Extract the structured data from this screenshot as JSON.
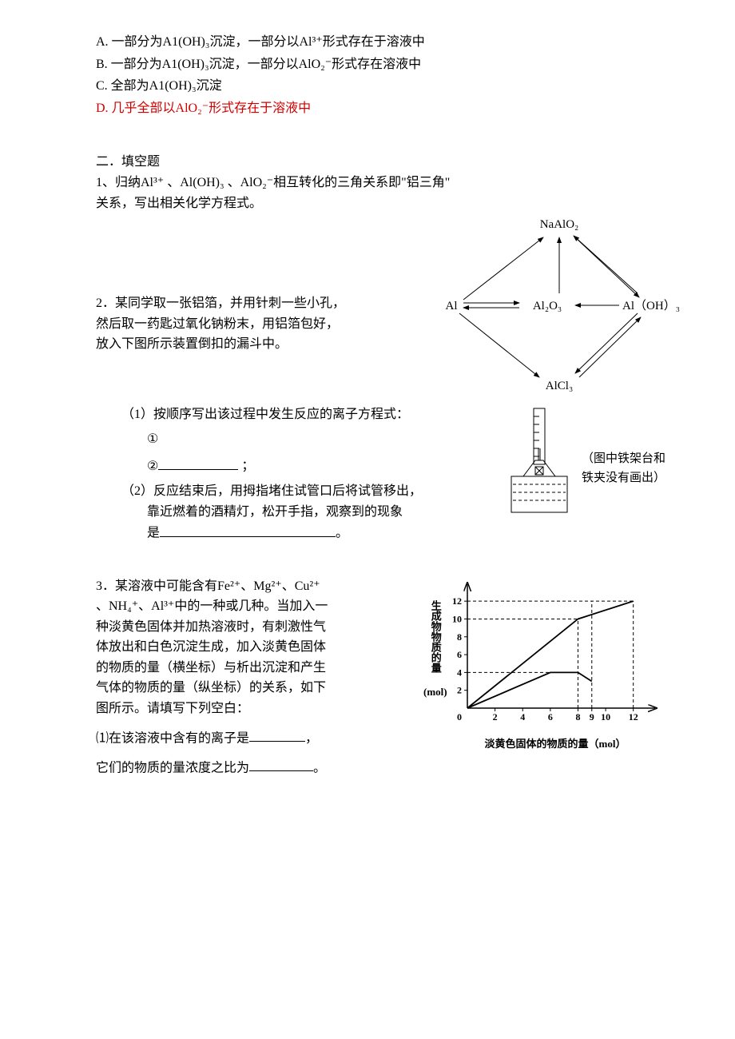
{
  "options": {
    "a": "A. 一部分为A1(OH)₃沉淀，一部分以Al³⁺形式存在于溶液中",
    "b": "B. 一部分为A1(OH)₃沉淀，一部分以AlO₂⁻形式存在溶液中",
    "c": "C. 全部为A1(OH)₃沉淀",
    "d": "D. 几乎全部以AlO₂⁻形式存在于溶液中"
  },
  "section2_title": "二．填空题",
  "q1": {
    "text_l1": "1、归纳Al³⁺ 、Al(OH)₃ 、AlO₂⁻相互转化的三角关系即\"铝三角\"",
    "text_l2": "关系，写出相关化学方程式。",
    "nodes": {
      "top": "NaAlO₂",
      "left": "Al",
      "mid": "Al₂O₃",
      "right": "Al（OH）₃",
      "bottom": "AlCl₃"
    }
  },
  "q2": {
    "l1": "2．某同学取一张铝箔，并用针刺一些小孔，",
    "l2": "然后取一药匙过氧化钠粉末，用铝箔包好，",
    "l3": "放入下图所示装置倒扣的漏斗中。",
    "p1": "（1）按顺序写出该过程中发生反应的离子方程式：",
    "c1": "①",
    "c2a": "②",
    "c2b": "；",
    "p2a": "（2）反应结束后，用拇指堵住试管口后将试管移出，",
    "p2b": "靠近燃着的酒精灯，松开手指，观察到的现象",
    "p2c": "是",
    "p2d": "。",
    "note1": "（图中铁架台和",
    "note2": "铁夹没有画出）"
  },
  "q3": {
    "l1": "3．某溶液中可能含有Fe²⁺、Mg²⁺、Cu²⁺",
    "l2": "、NH₄⁺、Al³⁺中的一种或几种。当加入一",
    "l3": "种淡黄色固体并加热溶液时，有刺激性气",
    "l4": "体放出和白色沉淀生成，加入淡黄色固体",
    "l5": "的物质的量（横坐标）与析出沉淀和产生",
    "l6": "气体的物质的量（纵坐标）的关系，如下",
    "l7": "图所示。请填写下列空白：",
    "p1a": "⑴在该溶液中含有的离子是",
    "p1b": "，",
    "p2a": "它们的物质的量浓度之比为",
    "p2b": "。",
    "chart": {
      "y_label": "生成物物质的量",
      "y_unit": "(mol)",
      "x_label": "淡黄色固体的物质的量（mol）",
      "y_ticks": [
        2,
        4,
        6,
        8,
        10,
        12
      ],
      "x_ticks": [
        2,
        4,
        6,
        8,
        9,
        10,
        12
      ],
      "line1": [
        [
          0,
          0
        ],
        [
          8,
          10
        ],
        [
          12,
          12
        ]
      ],
      "line2": [
        [
          0,
          0
        ],
        [
          6,
          4
        ],
        [
          8,
          4
        ],
        [
          9,
          3
        ]
      ],
      "dashes": [
        [
          [
            0,
            10
          ],
          [
            8,
            10
          ]
        ],
        [
          [
            8,
            0
          ],
          [
            8,
            10
          ]
        ],
        [
          [
            0,
            4
          ],
          [
            6,
            4
          ]
        ],
        [
          [
            9,
            0
          ],
          [
            9,
            12
          ]
        ],
        [
          [
            0,
            12
          ],
          [
            12,
            12
          ]
        ],
        [
          [
            12,
            0
          ],
          [
            12,
            12
          ]
        ]
      ]
    }
  }
}
